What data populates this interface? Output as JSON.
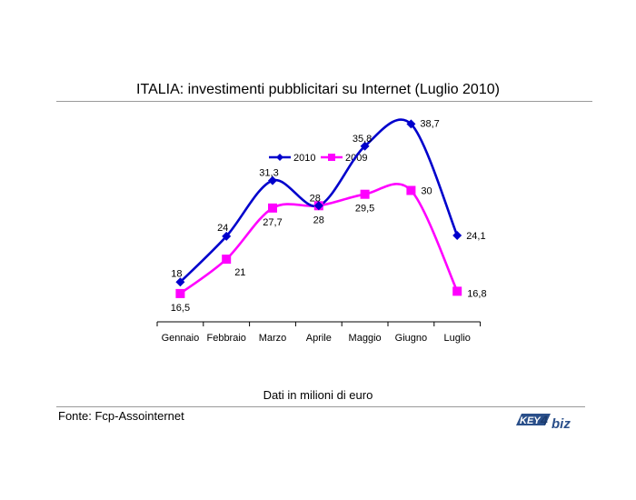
{
  "title": "ITALIA: investimenti pubblicitari su Internet (Luglio 2010)",
  "note": "Dati in milioni di euro",
  "source": "Fonte: Fcp-Assointernet",
  "logo_text": "KEY4biz",
  "chart_data": {
    "type": "line",
    "categories": [
      "Gennaio",
      "Febbraio",
      "Marzo",
      "Aprile",
      "Maggio",
      "Giugno",
      "Luglio"
    ],
    "series": [
      {
        "name": "2010",
        "color": "#0000cc",
        "marker": "diamond",
        "values": [
          18,
          24,
          31.3,
          28,
          35.8,
          38.7,
          24.1
        ],
        "labels": [
          "18",
          "24",
          "31,3",
          "28",
          "35,8",
          "38,7",
          "24,1"
        ]
      },
      {
        "name": "2009",
        "color": "#ff00ff",
        "marker": "square",
        "values": [
          16.5,
          21,
          27.7,
          28,
          29.5,
          30,
          16.8
        ],
        "labels": [
          "16,5",
          "21",
          "27,7",
          "28",
          "29,5",
          "30",
          "16,8"
        ]
      }
    ],
    "ylim": [
      0,
      45
    ],
    "grid": false,
    "smoothed": true,
    "legend_position": "top"
  }
}
